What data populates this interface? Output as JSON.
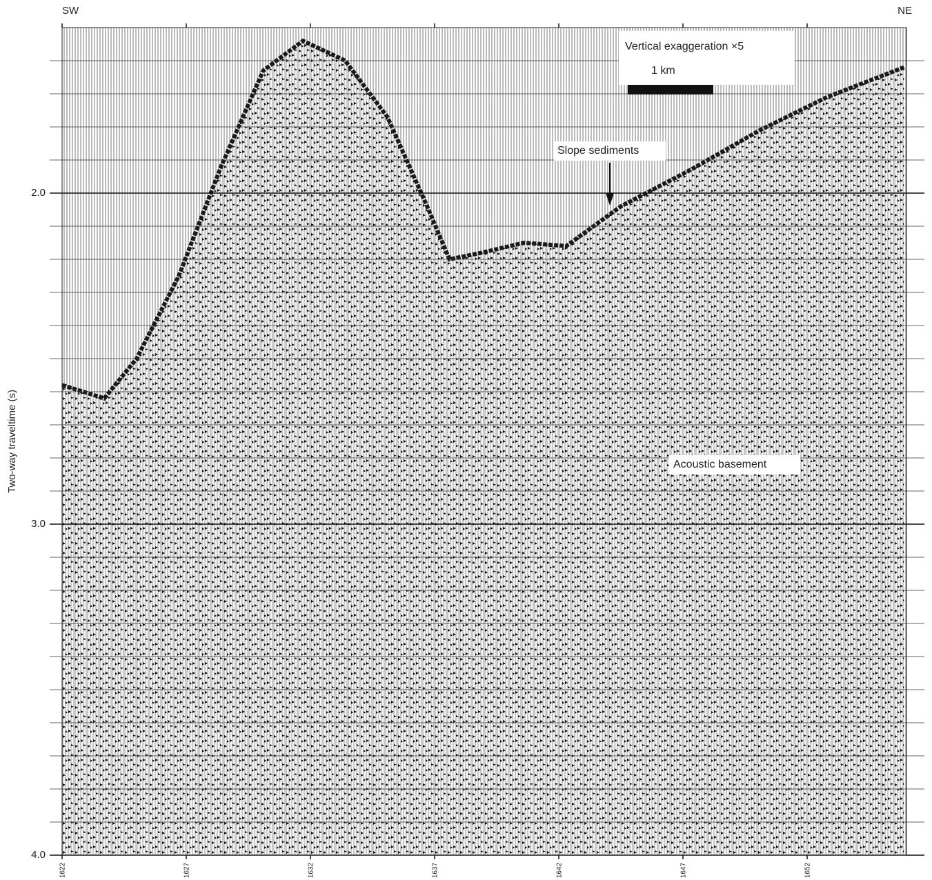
{
  "chart_data": {
    "type": "seismic-profile",
    "ylabel": "Two-way traveltime (s)",
    "left_label": "SW",
    "right_label": "NE",
    "annotations": [
      "Vertical exaggeration ×5",
      "1 km",
      "Slope sediments",
      "Acoustic basement"
    ],
    "xlim": [
      1622,
      1656
    ],
    "xticks": [
      1622,
      1627,
      1632,
      1637,
      1642,
      1647,
      1652
    ],
    "ylim": [
      1.5,
      4.0
    ],
    "yticks": [
      {
        "value": 2,
        "label": "2.0"
      },
      {
        "value": 3,
        "label": "3.0"
      },
      {
        "value": 4,
        "label": "4.0"
      }
    ],
    "minor_yticks": [
      1.6,
      1.7,
      1.8,
      1.9,
      2.1,
      2.2,
      2.3,
      2.4,
      2.5,
      2.6,
      2.7,
      2.8,
      2.9,
      3.1,
      3.2,
      3.3,
      3.4,
      3.5,
      3.6,
      3.7,
      3.8,
      3.9
    ],
    "grid": true,
    "series": [
      {
        "color": "#1a1a1a",
        "x": [
          1622,
          1623.7,
          1625,
          1626.7,
          1628.4,
          1630.1,
          1631.7,
          1633.4,
          1635.1,
          1636.7,
          1637.6,
          1638.9,
          1640.6,
          1642.3,
          1644.5,
          1647.3,
          1650.1,
          1652.8,
          1655.9
        ],
        "values": [
          2.58,
          2.62,
          2.5,
          2.25,
          1.92,
          1.63,
          1.54,
          1.6,
          1.77,
          2.04,
          2.2,
          2.18,
          2.15,
          2.16,
          2.04,
          1.93,
          1.81,
          1.71,
          1.62
        ]
      }
    ]
  }
}
